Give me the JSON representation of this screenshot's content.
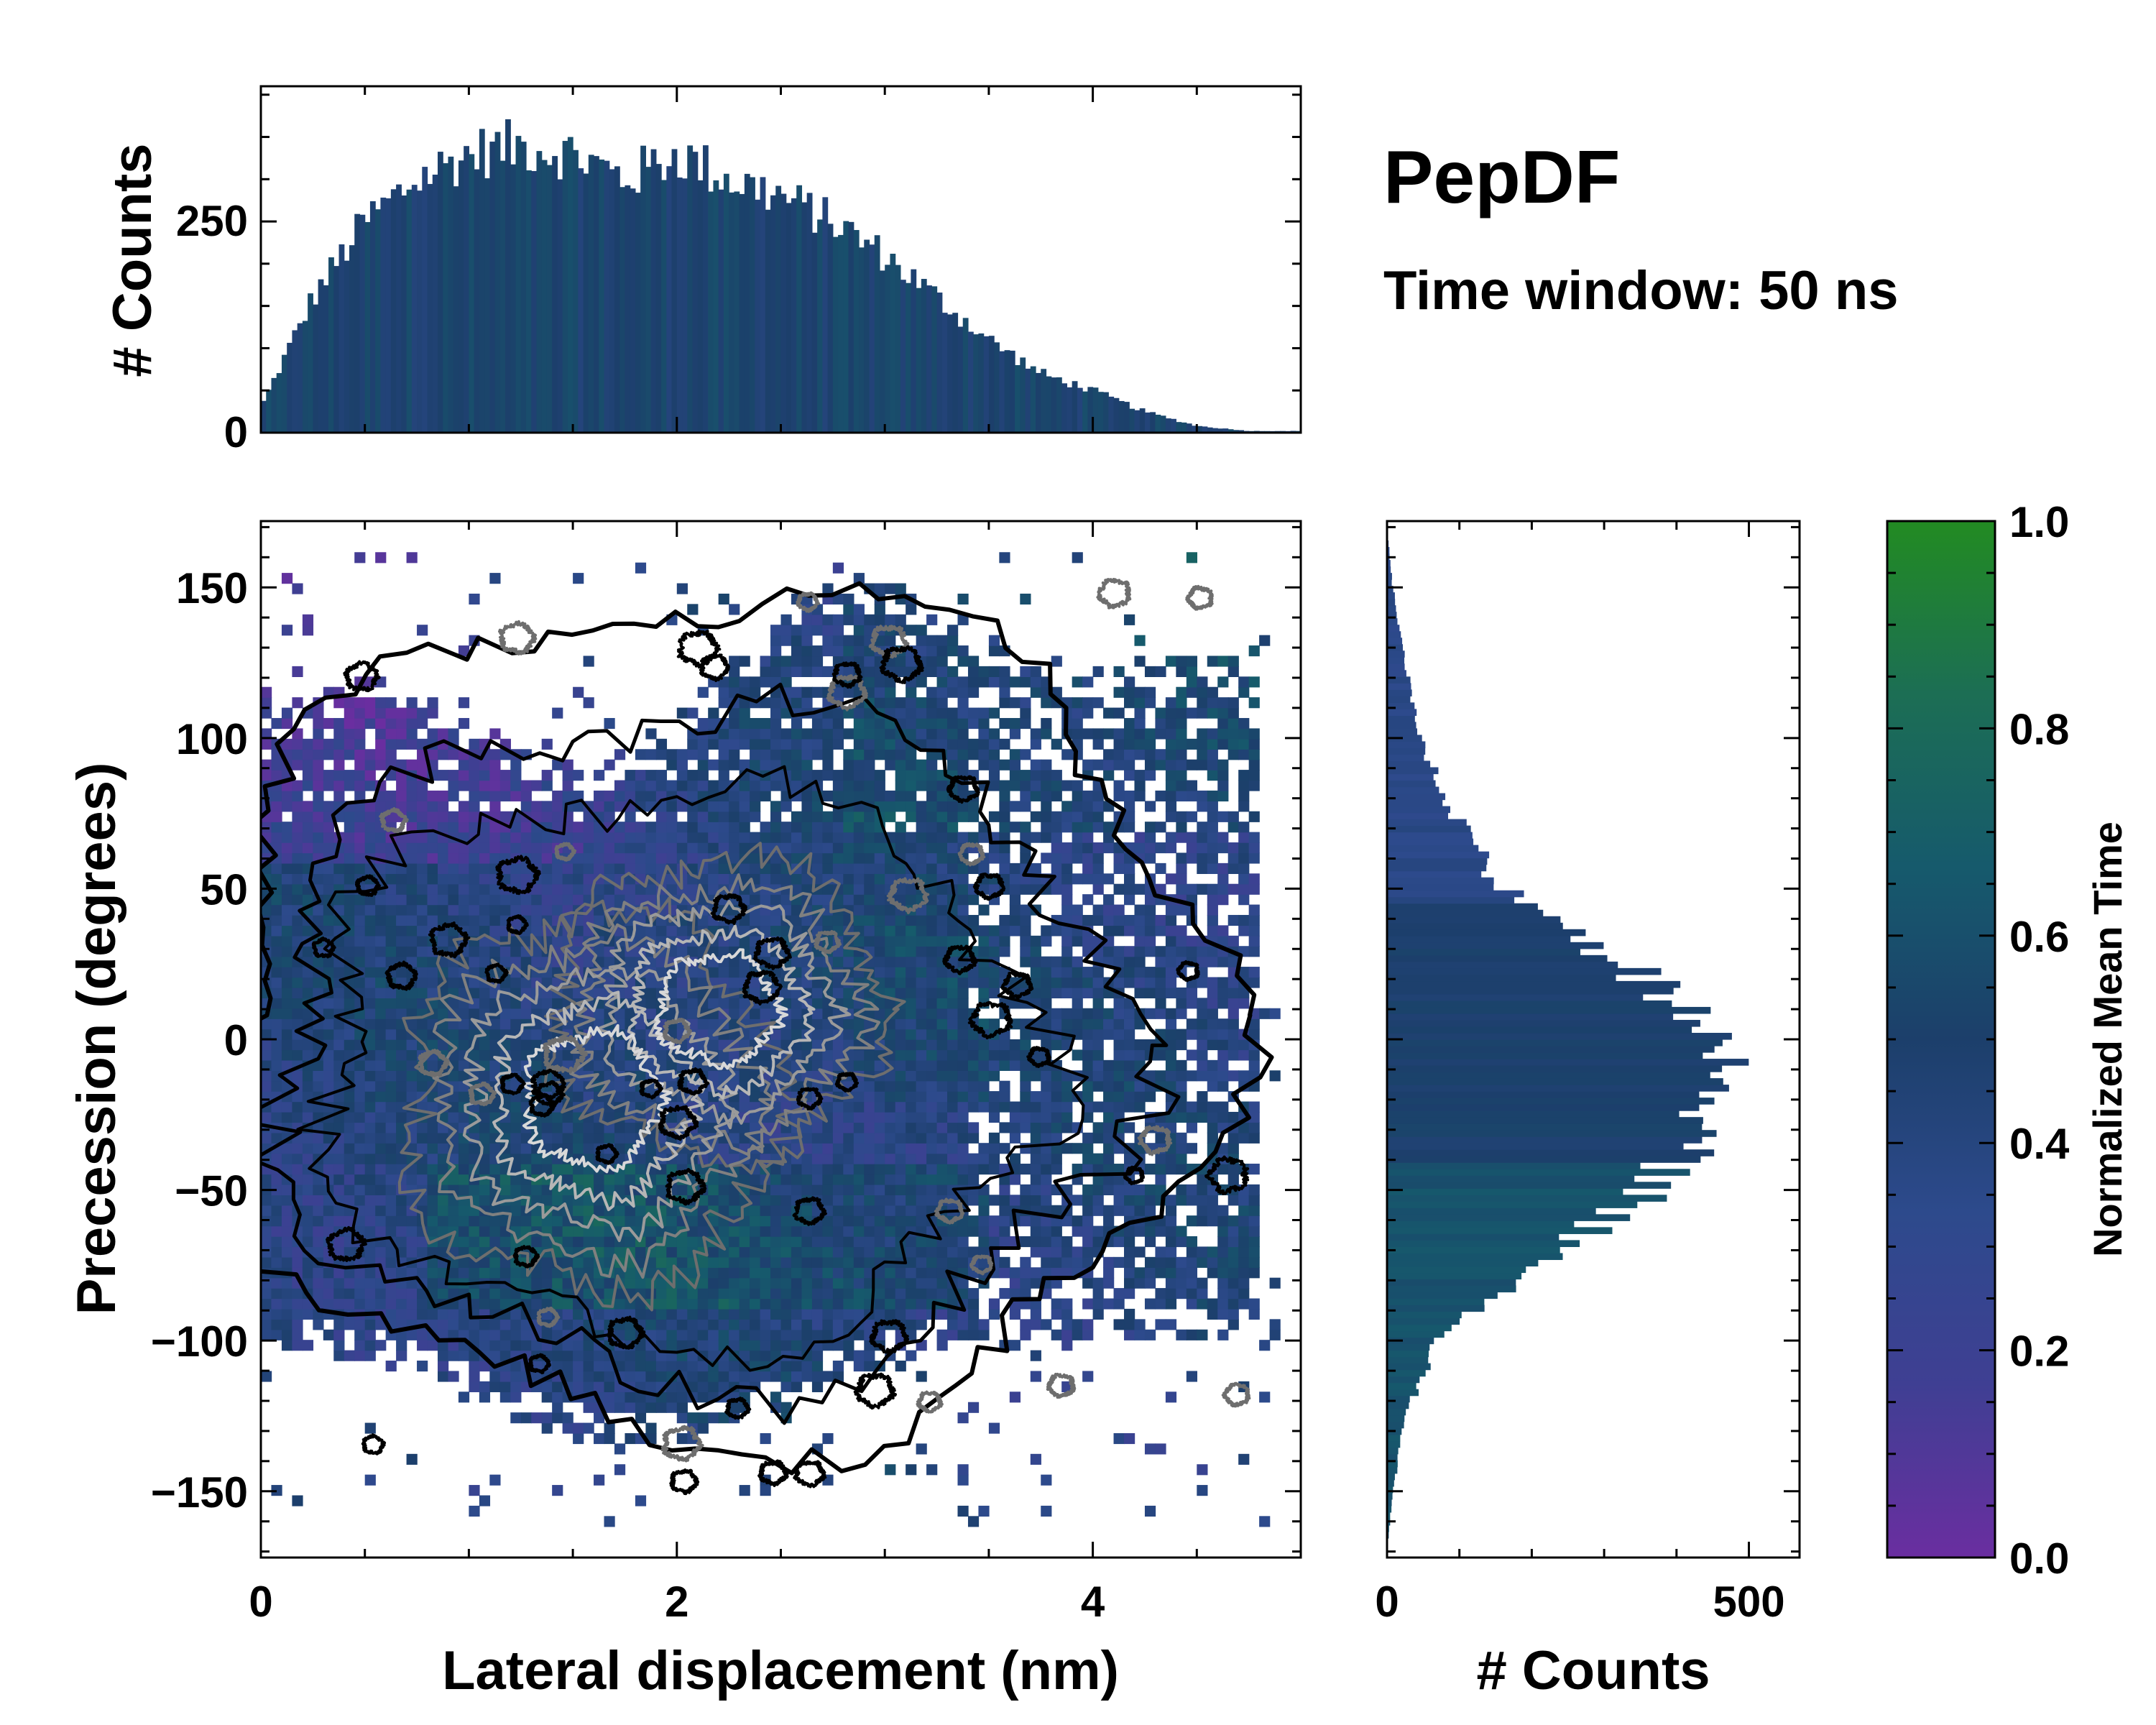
{
  "title": "PepDF",
  "subtitle": "Time window: 50 ns",
  "colors": {
    "colormap": [
      "#6a2ea0",
      "#3f3f93",
      "#2d4a8c",
      "#1c3f6b",
      "#165a6c",
      "#1c6e54",
      "#228b22"
    ],
    "contour_outer": "#000000",
    "contour_inner": "#6e6e6e",
    "contour_core": "#d8d8d8"
  },
  "chart_data": [
    {
      "id": "top-histogram",
      "type": "bar",
      "title": "",
      "xlabel": "",
      "ylabel": "# Counts",
      "xlim": [
        0,
        5
      ],
      "ylim": [
        0,
        410
      ],
      "yticks": [
        0,
        250
      ],
      "x_bin_starts": [
        0.0,
        0.25,
        0.5,
        0.75,
        1.0,
        1.25,
        1.5,
        1.75,
        2.0,
        2.25,
        2.5,
        2.75,
        3.0,
        3.25,
        3.5,
        3.75,
        4.0,
        4.25,
        4.5,
        4.75
      ],
      "values": [
        30,
        160,
        250,
        300,
        330,
        340,
        330,
        300,
        330,
        300,
        280,
        250,
        210,
        160,
        110,
        70,
        50,
        25,
        8,
        2
      ],
      "bin_count": 200,
      "bar_color": "#1c4270"
    },
    {
      "id": "main-2d-histogram",
      "type": "heatmap",
      "title": "",
      "xlabel": "Lateral displacement (nm)",
      "ylabel": "Precession (degrees)",
      "xlim": [
        0,
        5
      ],
      "ylim": [
        -172,
        172
      ],
      "xticks": [
        0,
        2,
        4
      ],
      "yticks": [
        -150,
        -100,
        -50,
        0,
        50,
        100,
        150
      ],
      "ytick_labels": [
        "−150",
        "−100",
        "−50",
        "0",
        "50",
        "100",
        "150"
      ],
      "density_centers": [
        {
          "x": 1.6,
          "y": -20
        },
        {
          "x": 2.2,
          "y": 10
        }
      ],
      "colorbar_label": "Normalized Mean Time",
      "colorbar_range": [
        0.0,
        1.0
      ],
      "colorbar_ticks": [
        "0.0",
        "0.2",
        "0.4",
        "0.6",
        "0.8",
        "1.0"
      ]
    },
    {
      "id": "right-histogram",
      "type": "bar",
      "orientation": "horizontal",
      "title": "",
      "xlabel": "# Counts",
      "ylabel": "",
      "xlim": [
        0,
        570
      ],
      "xticks": [
        0,
        500
      ],
      "ylim": [
        -172,
        172
      ],
      "y_bin_centers": [
        -150,
        -125,
        -100,
        -75,
        -50,
        -25,
        0,
        25,
        50,
        75,
        100,
        125,
        150
      ],
      "values": [
        8,
        25,
        70,
        200,
        370,
        440,
        490,
        330,
        160,
        90,
        45,
        25,
        8
      ],
      "bin_count": 160
    }
  ]
}
